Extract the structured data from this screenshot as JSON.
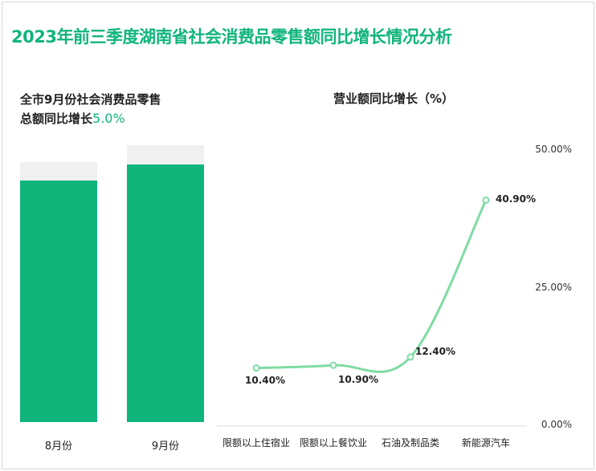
{
  "title": "2023年前三季度湖南省社会消费品零售额同比增长情况分析",
  "left_panel": {
    "title_line1": "全市9月份社会消费品零售",
    "title_line2": "总额同比增长",
    "highlight": "5.0%",
    "bars": [
      {
        "label": "8月份"
      },
      {
        "label": "9月份"
      }
    ]
  },
  "chart_data": {
    "type": "line",
    "title": "营业额同比增长（%）",
    "categories": [
      "限额以上住宿业",
      "限额以上餐饮业",
      "石油及制品类",
      "新能源汽车"
    ],
    "values": [
      10.4,
      10.9,
      12.4,
      40.9
    ],
    "value_labels": [
      "10.40%",
      "10.90%",
      "12.40%",
      "40.90%"
    ],
    "y_ticks": [
      "50.00%",
      "25.00%",
      "0.00%"
    ],
    "ylim": [
      0,
      50
    ],
    "line_color": "#7fdca4"
  },
  "colors": {
    "bar_fill": "#10b57c",
    "bar_bg": "#f0f0f0",
    "accent": "#10b57c"
  }
}
